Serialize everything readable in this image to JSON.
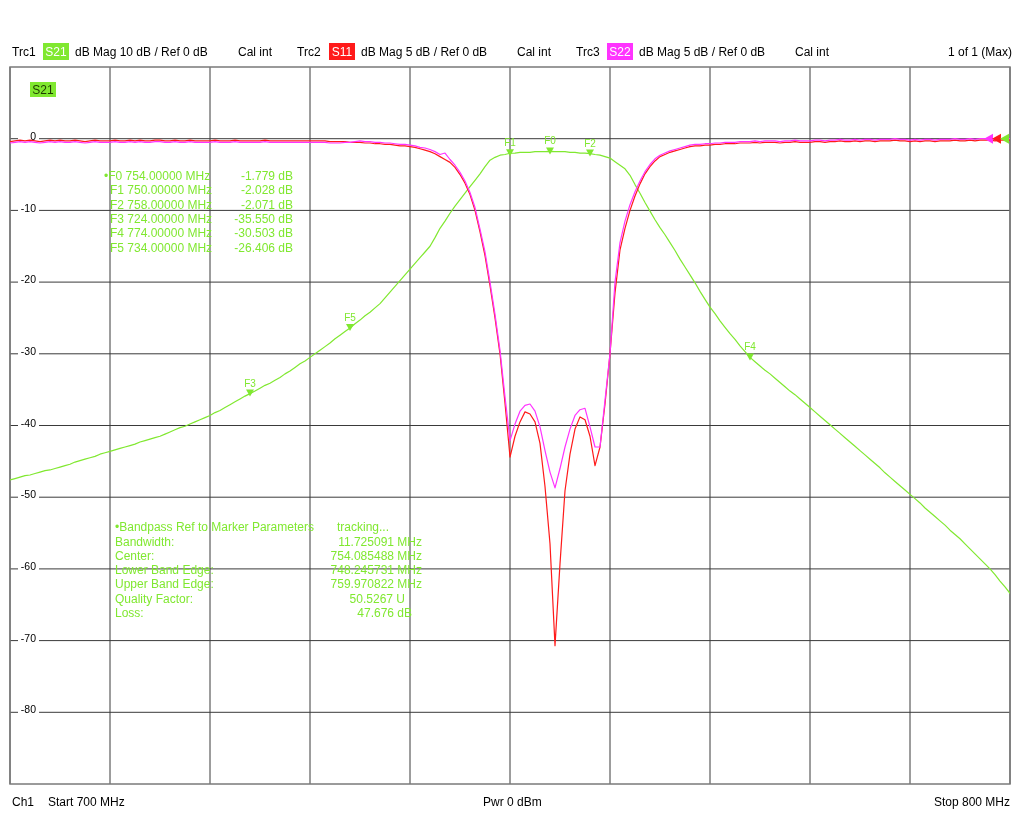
{
  "chart_data": {
    "type": "line",
    "categories": [
      null,
      null,
      null,
      null,
      null,
      null,
      null,
      null,
      null,
      null,
      null,
      null,
      null,
      null,
      null,
      null,
      null,
      null,
      null,
      null,
      null,
      null,
      null,
      null,
      null,
      null,
      null,
      null,
      null,
      null,
      null,
      null,
      null,
      null,
      null,
      null,
      null,
      null,
      null,
      null,
      null,
      null,
      null,
      null,
      null,
      null,
      null,
      null,
      null,
      null,
      null,
      null,
      null,
      null,
      null,
      null,
      null,
      null,
      null,
      null,
      null,
      null,
      null,
      null,
      null,
      null,
      null,
      null,
      null,
      null,
      null,
      null,
      null,
      null,
      null,
      null,
      null,
      null,
      null,
      null,
      null,
      null,
      null,
      null,
      null,
      null,
      null,
      null,
      null,
      null,
      null,
      null,
      null,
      null,
      null,
      null,
      null,
      null,
      null,
      null,
      null,
      null,
      null,
      null,
      null,
      null,
      null,
      null,
      null,
      null,
      null,
      null,
      null,
      null,
      null,
      null,
      null,
      null,
      null,
      null,
      null,
      null,
      null,
      null,
      null,
      null,
      null,
      null,
      null,
      null,
      null,
      null,
      null,
      null,
      null,
      null,
      null,
      null,
      null,
      null,
      null,
      null,
      null,
      null,
      null,
      null,
      null,
      null,
      null,
      null,
      null,
      null,
      null,
      null,
      null,
      null,
      null,
      null,
      null,
      null,
      null,
      null,
      null,
      null,
      null,
      null,
      null,
      null,
      null,
      null,
      null,
      null,
      null,
      null,
      null,
      null,
      null,
      null,
      null,
      null,
      null,
      null,
      null,
      null,
      null,
      null,
      null,
      null,
      null,
      null,
      null,
      null,
      null,
      null,
      null,
      null,
      null,
      null,
      null,
      null,
      null
    ],
    "ylim": [
      -90,
      10
    ],
    "yticks": [
      0,
      -10,
      -20,
      -30,
      -40,
      -50,
      -60,
      -70,
      -80
    ],
    "tick_labels": "y",
    "grid": true,
    "legend": "top",
    "series": [
      {
        "name": "S21",
        "color": "#80e830",
        "values": [
          -47.6,
          -47.4,
          -47.2,
          -47.0,
          -46.9,
          -46.7,
          -46.5,
          -46.3,
          -46.2,
          -46.0,
          -45.8,
          -45.6,
          -45.4,
          -45.1,
          -44.9,
          -44.7,
          -44.5,
          -44.3,
          -44.0,
          -43.8,
          -43.6,
          -43.4,
          -43.2,
          -43.0,
          -42.8,
          -42.6,
          -42.3,
          -42.1,
          -41.9,
          -41.7,
          -41.5,
          -41.2,
          -40.9,
          -40.6,
          -40.3,
          -40.1,
          -39.8,
          -39.5,
          -39.2,
          -38.9,
          -38.6,
          -38.2,
          -37.9,
          -37.5,
          -37.1,
          -36.7,
          -36.3,
          -35.9,
          -35.55,
          -35.2,
          -34.8,
          -34.4,
          -34.1,
          -33.7,
          -33.3,
          -32.8,
          -32.4,
          -31.9,
          -31.4,
          -31.0,
          -30.5,
          -30.0,
          -29.5,
          -29.0,
          -28.5,
          -27.9,
          -27.4,
          -26.9,
          -26.406,
          -25.8,
          -25.3,
          -24.7,
          -24.2,
          -23.6,
          -23.0,
          -22.2,
          -21.4,
          -20.6,
          -19.8,
          -19.0,
          -18.2,
          -17.4,
          -16.6,
          -15.8,
          -15.0,
          -13.8,
          -12.5,
          -11.5,
          -10.4,
          -9.4,
          -8.5,
          -7.6,
          -6.7,
          -5.8,
          -4.9,
          -3.9,
          -3.0,
          -2.6,
          -2.3,
          -2.2,
          -2.028,
          -2.0,
          -1.9,
          -1.9,
          -1.9,
          -1.8,
          -1.8,
          -1.8,
          -1.779,
          -1.8,
          -1.8,
          -1.8,
          -1.9,
          -1.9,
          -2.0,
          -2.0,
          -2.071,
          -2.2,
          -2.3,
          -2.5,
          -2.7,
          -3.2,
          -3.7,
          -4.2,
          -5.1,
          -6.4,
          -7.6,
          -8.9,
          -10.1,
          -11.3,
          -12.4,
          -13.4,
          -14.5,
          -15.6,
          -16.8,
          -17.9,
          -19.0,
          -20.1,
          -21.3,
          -22.4,
          -23.5,
          -24.4,
          -25.4,
          -26.3,
          -27.2,
          -28.0,
          -28.9,
          -29.7,
          -30.503,
          -31.1,
          -31.7,
          -32.3,
          -32.8,
          -33.4,
          -34.0,
          -34.6,
          -35.2,
          -35.7,
          -36.3,
          -36.9,
          -37.5,
          -38.1,
          -38.7,
          -39.3,
          -39.9,
          -40.5,
          -41.1,
          -41.7,
          -42.3,
          -42.9,
          -43.5,
          -44.1,
          -44.7,
          -45.3,
          -45.9,
          -46.6,
          -47.2,
          -47.8,
          -48.4,
          -49.0,
          -49.6,
          -50.2,
          -50.8,
          -51.5,
          -52.1,
          -52.7,
          -53.3,
          -53.9,
          -54.6,
          -55.2,
          -55.8,
          -56.5,
          -57.2,
          -57.9,
          -58.6,
          -59.3,
          -60.0,
          -60.8,
          -61.7,
          -62.5,
          -63.4
        ]
      },
      {
        "name": "S11",
        "color": "#ff1a1a",
        "values": [
          -0.4,
          -0.3,
          -0.2,
          -0.3,
          -0.2,
          -0.3,
          -0.4,
          -0.3,
          -0.2,
          -0.3,
          -0.2,
          -0.3,
          -0.3,
          -0.2,
          -0.3,
          -0.4,
          -0.3,
          -0.2,
          -0.3,
          -0.3,
          -0.3,
          -0.2,
          -0.3,
          -0.3,
          -0.2,
          -0.3,
          -0.2,
          -0.3,
          -0.3,
          -0.2,
          -0.2,
          -0.3,
          -0.3,
          -0.2,
          -0.3,
          -0.3,
          -0.2,
          -0.3,
          -0.3,
          -0.3,
          -0.3,
          -0.2,
          -0.3,
          -0.3,
          -0.3,
          -0.2,
          -0.3,
          -0.3,
          -0.3,
          -0.3,
          -0.3,
          -0.2,
          -0.3,
          -0.3,
          -0.3,
          -0.3,
          -0.3,
          -0.3,
          -0.3,
          -0.3,
          -0.3,
          -0.3,
          -0.3,
          -0.3,
          -0.4,
          -0.4,
          -0.4,
          -0.4,
          -0.5,
          -0.5,
          -0.5,
          -0.6,
          -0.6,
          -0.7,
          -0.7,
          -0.8,
          -0.8,
          -0.9,
          -1.0,
          -1.0,
          -1.1,
          -1.2,
          -1.4,
          -1.6,
          -1.8,
          -2.1,
          -2.5,
          -2.9,
          -3.3,
          -4.0,
          -5.0,
          -6.2,
          -7.8,
          -10.0,
          -13.0,
          -16.3,
          -20.5,
          -25.0,
          -30.0,
          -36.9,
          -44.4,
          -41.5,
          -39.5,
          -38.1,
          -38.4,
          -39.5,
          -42.5,
          -48.5,
          -56.5,
          -70.7,
          -59.3,
          -49.1,
          -44.0,
          -40.5,
          -38.8,
          -39.2,
          -41.5,
          -45.6,
          -43.0,
          -37.0,
          -30.0,
          -21.5,
          -15.5,
          -12.5,
          -10.0,
          -8.0,
          -6.3,
          -4.9,
          -3.9,
          -3.1,
          -2.5,
          -2.2,
          -1.9,
          -1.7,
          -1.5,
          -1.3,
          -1.1,
          -1.0,
          -1.0,
          -0.9,
          -0.9,
          -0.8,
          -0.8,
          -0.7,
          -0.7,
          -0.7,
          -0.6,
          -0.6,
          -0.6,
          -0.5,
          -0.6,
          -0.5,
          -0.5,
          -0.5,
          -0.6,
          -0.5,
          -0.5,
          -0.4,
          -0.5,
          -0.5,
          -0.5,
          -0.4,
          -0.4,
          -0.5,
          -0.4,
          -0.4,
          -0.3,
          -0.4,
          -0.4,
          -0.3,
          -0.4,
          -0.3,
          -0.3,
          -0.4,
          -0.3,
          -0.3,
          -0.3,
          -0.2,
          -0.3,
          -0.3,
          -0.4,
          -0.3,
          -0.4,
          -0.3,
          -0.3,
          -0.4,
          -0.3,
          -0.3,
          -0.3,
          -0.2,
          -0.3,
          -0.3,
          -0.2,
          -0.3,
          -0.2,
          -0.2,
          -0.2,
          -0.3,
          -0.2,
          -0.2,
          -0.2
        ]
      },
      {
        "name": "S22",
        "color": "#ff33ff",
        "values": [
          -0.6,
          -0.5,
          -0.4,
          -0.5,
          -0.4,
          -0.5,
          -0.6,
          -0.5,
          -0.4,
          -0.5,
          -0.4,
          -0.5,
          -0.5,
          -0.4,
          -0.5,
          -0.6,
          -0.5,
          -0.4,
          -0.5,
          -0.5,
          -0.5,
          -0.4,
          -0.5,
          -0.5,
          -0.4,
          -0.5,
          -0.4,
          -0.5,
          -0.5,
          -0.4,
          -0.4,
          -0.5,
          -0.5,
          -0.4,
          -0.5,
          -0.5,
          -0.4,
          -0.5,
          -0.5,
          -0.5,
          -0.5,
          -0.4,
          -0.5,
          -0.5,
          -0.5,
          -0.4,
          -0.5,
          -0.5,
          -0.5,
          -0.5,
          -0.5,
          -0.4,
          -0.5,
          -0.5,
          -0.5,
          -0.5,
          -0.5,
          -0.5,
          -0.5,
          -0.5,
          -0.5,
          -0.5,
          -0.5,
          -0.5,
          -0.6,
          -0.6,
          -0.6,
          -0.5,
          -0.5,
          -0.4,
          -0.3,
          -0.4,
          -0.4,
          -0.5,
          -0.5,
          -0.6,
          -0.6,
          -0.7,
          -0.8,
          -0.8,
          -0.9,
          -1.0,
          -1.2,
          -1.3,
          -1.5,
          -1.8,
          -2.2,
          -2.0,
          -2.9,
          -3.7,
          -4.7,
          -5.9,
          -7.5,
          -9.6,
          -12.6,
          -15.8,
          -20.0,
          -24.5,
          -29.5,
          -36.0,
          -42.1,
          -39.8,
          -38.0,
          -37.2,
          -37.0,
          -38.0,
          -40.2,
          -43.5,
          -46.5,
          -48.7,
          -46.0,
          -43.0,
          -40.5,
          -38.6,
          -37.8,
          -37.6,
          -40.2,
          -43.0,
          -43.0,
          -36.5,
          -30.0,
          -20.0,
          -14.5,
          -11.5,
          -9.2,
          -7.4,
          -5.9,
          -4.6,
          -3.6,
          -2.8,
          -2.3,
          -2.0,
          -1.7,
          -1.5,
          -1.3,
          -1.1,
          -0.9,
          -0.8,
          -0.8,
          -0.7,
          -0.7,
          -0.6,
          -0.6,
          -0.5,
          -0.5,
          -0.5,
          -0.4,
          -0.4,
          -0.4,
          -0.3,
          -0.4,
          -0.3,
          -0.3,
          -0.3,
          -0.4,
          -0.3,
          -0.3,
          -0.2,
          -0.3,
          -0.3,
          -0.3,
          -0.2,
          -0.2,
          -0.3,
          -0.2,
          -0.2,
          -0.1,
          -0.2,
          -0.2,
          -0.1,
          -0.2,
          -0.1,
          -0.1,
          -0.2,
          -0.1,
          -0.1,
          -0.1,
          0,
          -0.1,
          -0.1,
          -0.2,
          -0.1,
          -0.2,
          -0.1,
          -0.1,
          -0.2,
          -0.1,
          -0.1,
          -0.1,
          0,
          -0.1,
          -0.1,
          0,
          -0.1,
          0,
          0,
          0,
          -0.1,
          0,
          0,
          0
        ]
      },
      {
        "type": "scatter",
        "marker": "triangle",
        "color": "#80e830",
        "values": [
          null,
          null,
          null,
          null,
          null,
          null,
          null,
          null,
          null,
          null,
          null,
          null,
          null,
          null,
          null,
          null,
          null,
          null,
          null,
          null,
          null,
          null,
          null,
          null,
          null,
          null,
          null,
          null,
          null,
          null,
          null,
          null,
          null,
          null,
          null,
          null,
          null,
          null,
          null,
          null,
          null,
          null,
          null,
          null,
          null,
          null,
          null,
          null,
          -35.55,
          null,
          null,
          null,
          null,
          null,
          null,
          null,
          null,
          null,
          null,
          null,
          null,
          null,
          null,
          null,
          null,
          null,
          null,
          null,
          -26.406,
          null,
          null,
          null,
          null,
          null,
          null,
          null,
          null,
          null,
          null,
          null,
          null,
          null,
          null,
          null,
          null,
          null,
          null,
          null,
          null,
          null,
          null,
          null,
          null,
          null,
          null,
          null,
          null,
          null,
          null,
          null,
          -2.028,
          null,
          null,
          null,
          null,
          null,
          null,
          null,
          -1.779,
          null,
          null,
          null,
          null,
          null,
          null,
          null,
          -2.071,
          null,
          null,
          null,
          null,
          null,
          null,
          null,
          null,
          null,
          null,
          null,
          null,
          null,
          null,
          null,
          null,
          null,
          null,
          null,
          null,
          null,
          null,
          null,
          null,
          null,
          null,
          null,
          null,
          null,
          null,
          null,
          -30.503,
          null,
          null,
          null,
          null,
          null,
          null,
          null,
          null,
          null,
          null,
          null,
          null,
          null,
          null,
          null,
          null,
          null,
          null,
          null,
          null,
          null,
          null,
          null,
          null,
          null,
          null,
          null,
          null,
          null,
          null,
          null,
          null,
          null,
          null,
          null,
          null,
          null,
          null,
          null,
          null,
          null,
          null,
          null,
          null,
          null,
          null,
          null,
          null,
          null,
          null,
          null,
          null
        ],
        "value_labels": [
          null,
          null,
          null,
          null,
          null,
          null,
          null,
          null,
          null,
          null,
          null,
          null,
          null,
          null,
          null,
          null,
          null,
          null,
          null,
          null,
          null,
          null,
          null,
          null,
          null,
          null,
          null,
          null,
          null,
          null,
          null,
          null,
          null,
          null,
          null,
          null,
          null,
          null,
          null,
          null,
          null,
          null,
          null,
          null,
          null,
          null,
          null,
          null,
          "F3",
          null,
          null,
          null,
          null,
          null,
          null,
          null,
          null,
          null,
          null,
          null,
          null,
          null,
          null,
          null,
          null,
          null,
          null,
          null,
          "F5",
          null,
          null,
          null,
          null,
          null,
          null,
          null,
          null,
          null,
          null,
          null,
          null,
          null,
          null,
          null,
          null,
          null,
          null,
          null,
          null,
          null,
          null,
          null,
          null,
          null,
          null,
          null,
          null,
          null,
          null,
          null,
          "F1",
          null,
          null,
          null,
          null,
          null,
          null,
          null,
          "F0",
          null,
          null,
          null,
          null,
          null,
          null,
          null,
          "F2",
          null,
          null,
          null,
          null,
          null,
          null,
          null,
          null,
          null,
          null,
          null,
          null,
          null,
          null,
          null,
          null,
          null,
          null,
          null,
          null,
          null,
          null,
          null,
          null,
          null,
          null,
          null,
          null,
          null,
          null,
          null,
          "F4",
          null,
          null,
          null,
          null,
          null,
          null,
          null,
          null,
          null,
          null,
          null,
          null,
          null,
          null,
          null,
          null,
          null,
          null,
          null,
          null,
          null,
          null,
          null,
          null,
          null,
          null,
          null,
          null,
          null,
          null,
          null,
          null,
          null,
          null,
          null,
          null,
          null,
          null,
          null,
          null,
          null,
          null,
          null,
          null,
          null,
          null,
          null,
          null,
          null,
          null,
          null,
          null
        ]
      }
    ],
    "annotations": [
      "Trc1",
      "dB Mag 10 dB / Ref 0 dB",
      "Cal int",
      "Trc2",
      "dB Mag 5 dB / Ref 0 dB",
      "Cal int",
      "Trc3",
      "dB Mag 5 dB / Ref 0 dB",
      "Cal int",
      "1 of 1 (Max)",
      "•F0 754.00000 MHz",
      "-1.779 dB",
      "F1 750.00000 MHz",
      "-2.028 dB",
      "F2 758.00000 MHz",
      "-2.071 dB",
      "F3 724.00000 MHz",
      "-35.550 dB",
      "F4 774.00000 MHz",
      "-30.503 dB",
      "F5 734.00000 MHz",
      "-26.406 dB",
      "•Bandpass Ref to Marker Parameters",
      "tracking...",
      "Bandwidth:",
      "11.725091 MHz",
      "Center:",
      "754.085488 MHz",
      "Lower Band Edge:",
      "748.245731 MHz",
      "Upper Band Edge:",
      "759.970822 MHz",
      "Quality Factor:",
      "50.5267 U",
      "Loss:",
      "47.676 dB",
      "Ch1",
      "Start 700 MHz",
      "Pwr 0 dBm",
      "Stop 800 MHz"
    ]
  }
}
